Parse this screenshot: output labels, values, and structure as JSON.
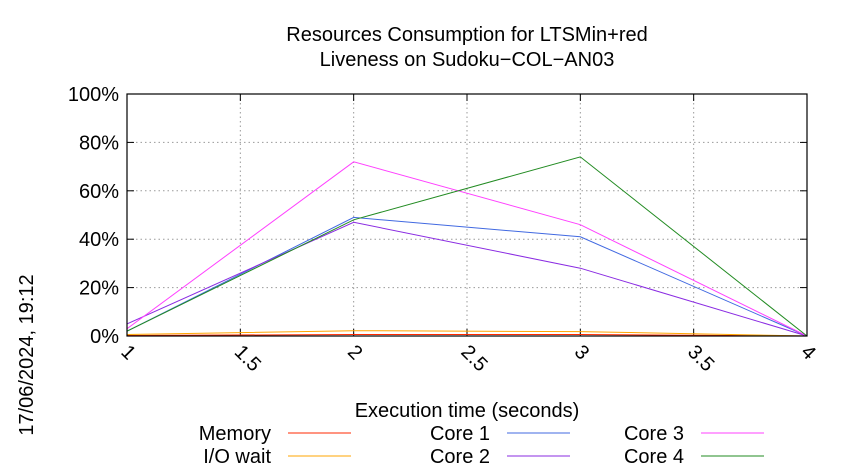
{
  "timestamp": "17/06/2024, 19:12",
  "chart_data": {
    "type": "line",
    "title_lines": [
      "Resources Consumption for LTSMin+red",
      "Liveness on Sudoku−COL−AN03"
    ],
    "xlabel": "Execution time (seconds)",
    "ylabel": "",
    "xlim": [
      1,
      4
    ],
    "ylim": [
      0,
      100
    ],
    "x_ticks": [
      "1",
      "1.5",
      "2",
      "2.5",
      "3",
      "3.5",
      "4"
    ],
    "y_ticks": [
      "0%",
      "20%",
      "40%",
      "60%",
      "80%",
      "100%"
    ],
    "grid": true,
    "legend_position": "bottom",
    "series": [
      {
        "name": "Memory",
        "color": "#ff2a00",
        "x": [
          1,
          2,
          3,
          4
        ],
        "y": [
          0.2,
          0.6,
          0.6,
          0
        ]
      },
      {
        "name": "I/O wait",
        "color": "#ffa500",
        "x": [
          1,
          2,
          3,
          4
        ],
        "y": [
          0.6,
          2.2,
          1.8,
          0
        ]
      },
      {
        "name": "Core 1",
        "color": "#4169e1",
        "x": [
          1,
          2,
          3,
          4
        ],
        "y": [
          2,
          49,
          41,
          0
        ]
      },
      {
        "name": "Core 2",
        "color": "#8a2be2",
        "x": [
          1,
          2,
          3,
          4
        ],
        "y": [
          5,
          47,
          28,
          0
        ]
      },
      {
        "name": "Core 3",
        "color": "#ff40ff",
        "x": [
          1,
          2,
          3,
          4
        ],
        "y": [
          3,
          72,
          46,
          0
        ]
      },
      {
        "name": "Core 4",
        "color": "#228b22",
        "x": [
          1,
          2,
          3,
          4
        ],
        "y": [
          2,
          48,
          74,
          0
        ]
      }
    ]
  }
}
